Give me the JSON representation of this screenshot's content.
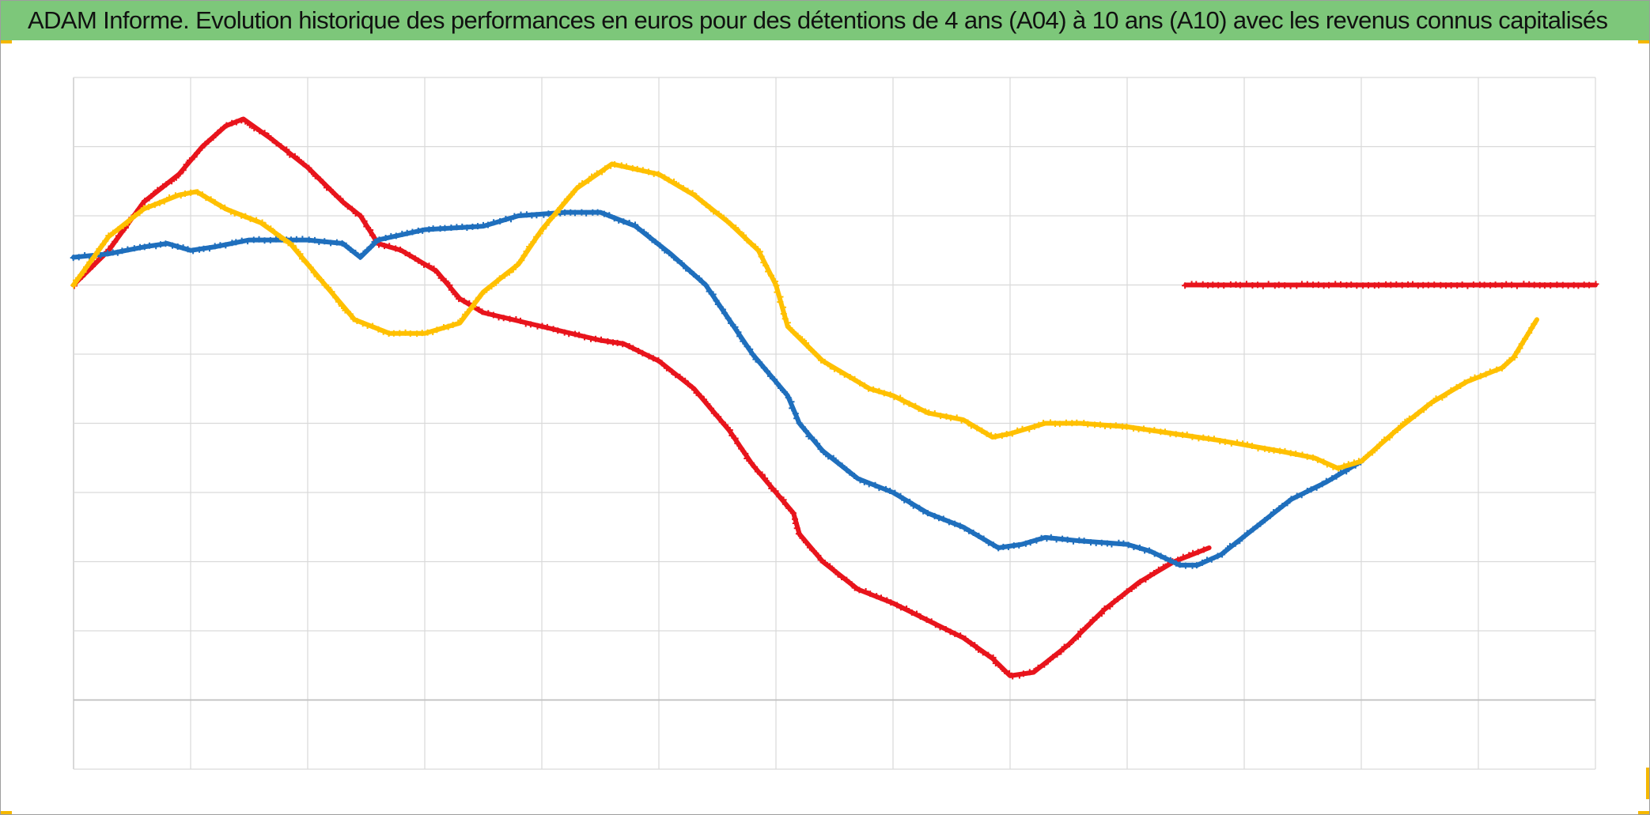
{
  "title": "ADAM Informe. Evolution historique des performances en euros pour des détentions de 4 ans (A04) à 10 ans (A10) avec les revenus connus capitalisés",
  "colors": {
    "title_bg": "#7dc77a",
    "grid": "#d9d9d9",
    "axis": "#bfbfbf",
    "corner_accent": "#f5b800"
  },
  "chart_data": {
    "type": "line",
    "title": "ADAM Informe. Evolution historique des performances en euros pour des détentions de 4 ans (A04) à 10 ans (A10) avec les revenus connus capitalisés",
    "xlabel": "",
    "ylabel": "",
    "xlim": [
      0,
      13
    ],
    "ylim": [
      0,
      10
    ],
    "grid": true,
    "legend": "none",
    "tick_labels_visible": false,
    "series": [
      {
        "color": "#e8141c",
        "marker": "+",
        "points": [
          [
            0,
            7.0
          ],
          [
            0.3,
            7.5
          ],
          [
            0.6,
            8.2
          ],
          [
            0.9,
            8.6
          ],
          [
            1.1,
            9.0
          ],
          [
            1.3,
            9.3
          ],
          [
            1.45,
            9.4
          ],
          [
            1.7,
            9.1
          ],
          [
            2.0,
            8.7
          ],
          [
            2.3,
            8.2
          ],
          [
            2.45,
            8.0
          ],
          [
            2.6,
            7.6
          ],
          [
            2.8,
            7.5
          ],
          [
            3.1,
            7.2
          ],
          [
            3.3,
            6.8
          ],
          [
            3.5,
            6.6
          ],
          [
            4.0,
            6.4
          ],
          [
            4.5,
            6.2
          ],
          [
            4.7,
            6.15
          ],
          [
            5.0,
            5.9
          ],
          [
            5.3,
            5.5
          ],
          [
            5.6,
            4.9
          ],
          [
            5.8,
            4.4
          ],
          [
            6.0,
            4.0
          ],
          [
            6.15,
            3.7
          ],
          [
            6.2,
            3.4
          ],
          [
            6.4,
            3.0
          ],
          [
            6.7,
            2.6
          ],
          [
            7.0,
            2.4
          ],
          [
            7.3,
            2.15
          ],
          [
            7.6,
            1.9
          ],
          [
            7.85,
            1.6
          ],
          [
            8.0,
            1.35
          ],
          [
            8.2,
            1.4
          ],
          [
            8.5,
            1.8
          ],
          [
            8.8,
            2.3
          ],
          [
            9.1,
            2.7
          ],
          [
            9.4,
            3.0
          ],
          [
            9.55,
            3.1
          ],
          [
            9.7,
            3.2
          ]
        ]
      },
      {
        "color": "#e8141c",
        "marker": "+",
        "points": [
          [
            9.5,
            7.0
          ],
          [
            13.0,
            7.0
          ]
        ]
      },
      {
        "color": "#1f6fbd",
        "marker": "+",
        "points": [
          [
            0,
            7.4
          ],
          [
            0.3,
            7.45
          ],
          [
            0.6,
            7.55
          ],
          [
            0.8,
            7.6
          ],
          [
            1.0,
            7.5
          ],
          [
            1.2,
            7.55
          ],
          [
            1.5,
            7.65
          ],
          [
            2.0,
            7.65
          ],
          [
            2.3,
            7.6
          ],
          [
            2.45,
            7.4
          ],
          [
            2.6,
            7.65
          ],
          [
            3.0,
            7.8
          ],
          [
            3.5,
            7.85
          ],
          [
            3.8,
            8.0
          ],
          [
            4.2,
            8.05
          ],
          [
            4.5,
            8.05
          ],
          [
            4.8,
            7.85
          ],
          [
            5.1,
            7.45
          ],
          [
            5.4,
            7.0
          ],
          [
            5.6,
            6.5
          ],
          [
            5.8,
            6.0
          ],
          [
            6.0,
            5.6
          ],
          [
            6.1,
            5.4
          ],
          [
            6.2,
            5.0
          ],
          [
            6.4,
            4.6
          ],
          [
            6.7,
            4.2
          ],
          [
            7.0,
            4.0
          ],
          [
            7.3,
            3.7
          ],
          [
            7.6,
            3.5
          ],
          [
            7.9,
            3.2
          ],
          [
            8.1,
            3.25
          ],
          [
            8.3,
            3.35
          ],
          [
            8.6,
            3.3
          ],
          [
            9.0,
            3.25
          ],
          [
            9.2,
            3.15
          ],
          [
            9.45,
            2.95
          ],
          [
            9.6,
            2.95
          ],
          [
            9.8,
            3.1
          ],
          [
            10.1,
            3.5
          ],
          [
            10.4,
            3.9
          ],
          [
            10.7,
            4.15
          ],
          [
            10.9,
            4.35
          ],
          [
            11.0,
            4.45
          ]
        ]
      },
      {
        "color": "#ffc000",
        "marker": "+",
        "points": [
          [
            0,
            7.0
          ],
          [
            0.3,
            7.7
          ],
          [
            0.6,
            8.1
          ],
          [
            0.9,
            8.3
          ],
          [
            1.05,
            8.35
          ],
          [
            1.3,
            8.1
          ],
          [
            1.6,
            7.9
          ],
          [
            1.85,
            7.6
          ],
          [
            2.1,
            7.1
          ],
          [
            2.4,
            6.5
          ],
          [
            2.7,
            6.3
          ],
          [
            3.0,
            6.3
          ],
          [
            3.3,
            6.45
          ],
          [
            3.5,
            6.9
          ],
          [
            3.8,
            7.3
          ],
          [
            4.0,
            7.8
          ],
          [
            4.3,
            8.4
          ],
          [
            4.6,
            8.75
          ],
          [
            5.0,
            8.6
          ],
          [
            5.3,
            8.3
          ],
          [
            5.6,
            7.9
          ],
          [
            5.85,
            7.5
          ],
          [
            6.0,
            7.0
          ],
          [
            6.1,
            6.4
          ],
          [
            6.4,
            5.9
          ],
          [
            6.8,
            5.5
          ],
          [
            7.0,
            5.4
          ],
          [
            7.3,
            5.15
          ],
          [
            7.6,
            5.05
          ],
          [
            7.85,
            4.8
          ],
          [
            8.0,
            4.85
          ],
          [
            8.3,
            5.0
          ],
          [
            8.6,
            5.0
          ],
          [
            9.0,
            4.95
          ],
          [
            9.4,
            4.85
          ],
          [
            9.8,
            4.75
          ],
          [
            10.3,
            4.6
          ],
          [
            10.6,
            4.5
          ],
          [
            10.8,
            4.35
          ],
          [
            11.0,
            4.45
          ],
          [
            11.3,
            4.9
          ],
          [
            11.6,
            5.3
          ],
          [
            11.9,
            5.6
          ],
          [
            12.2,
            5.8
          ],
          [
            12.3,
            5.95
          ],
          [
            12.5,
            6.5
          ]
        ]
      }
    ]
  }
}
